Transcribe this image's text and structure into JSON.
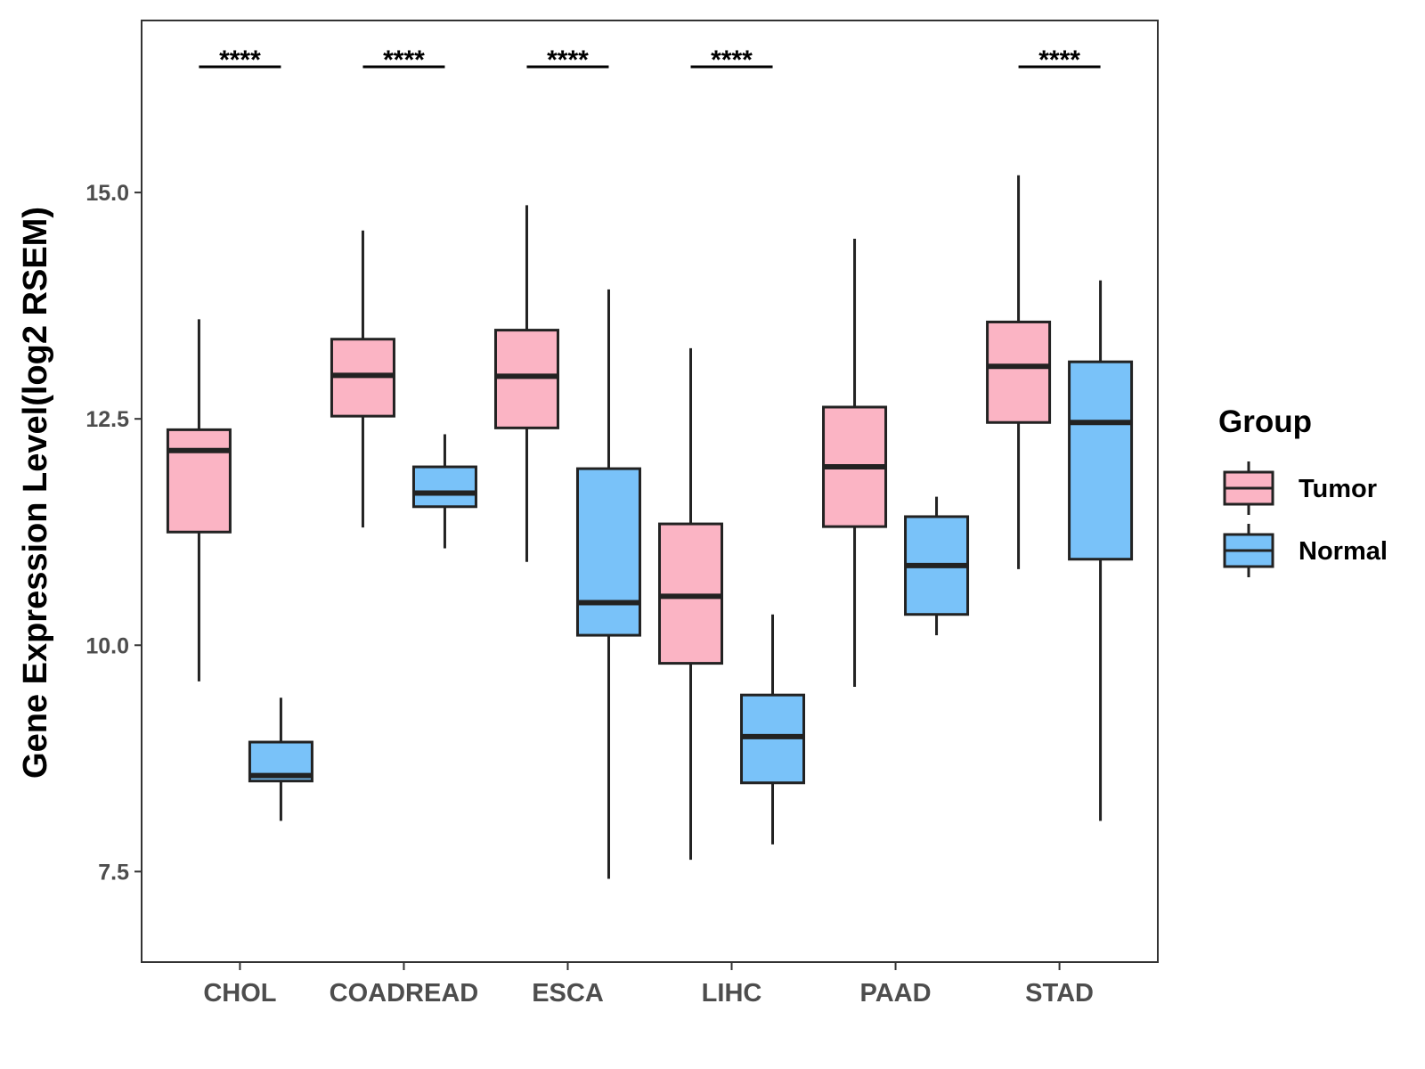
{
  "chart_data": {
    "type": "boxplot",
    "title": "",
    "xlabel": "",
    "ylabel": "Gene Expression Level(log2 RSEM)",
    "ylim": [
      6.5,
      16.9
    ],
    "yticks": [
      7.5,
      10.0,
      12.5,
      15.0
    ],
    "ytick_labels": [
      "7.5",
      "10.0",
      "12.5",
      "15.0"
    ],
    "grid": false,
    "legend": {
      "title": "Group",
      "position": "right",
      "entries": [
        {
          "name": "Tumor",
          "color": "#FBB4C4"
        },
        {
          "name": "Normal",
          "color": "#79C2F9"
        }
      ]
    },
    "categories": [
      "CHOL",
      "COADREAD",
      "ESCA",
      "LIHC",
      "PAAD",
      "STAD"
    ],
    "series": [
      {
        "name": "Tumor",
        "color": "#FBB4C4",
        "boxes": [
          {
            "min": 9.6,
            "q1": 11.25,
            "median": 12.15,
            "q3": 12.38,
            "max": 13.6
          },
          {
            "min": 11.3,
            "q1": 12.53,
            "median": 12.98,
            "q3": 13.38,
            "max": 14.58
          },
          {
            "min": 10.92,
            "q1": 12.4,
            "median": 12.97,
            "q3": 13.48,
            "max": 14.86
          },
          {
            "min": 7.63,
            "q1": 9.8,
            "median": 10.54,
            "q3": 11.34,
            "max": 13.28
          },
          {
            "min": 9.54,
            "q1": 11.31,
            "median": 11.97,
            "q3": 12.63,
            "max": 14.49
          },
          {
            "min": 10.84,
            "q1": 12.46,
            "median": 13.08,
            "q3": 13.57,
            "max": 15.19
          }
        ]
      },
      {
        "name": "Normal",
        "color": "#79C2F9",
        "boxes": [
          {
            "min": 8.06,
            "q1": 8.5,
            "median": 8.56,
            "q3": 8.93,
            "max": 9.42
          },
          {
            "min": 11.07,
            "q1": 11.53,
            "median": 11.68,
            "q3": 11.97,
            "max": 12.33
          },
          {
            "min": 7.42,
            "q1": 10.11,
            "median": 10.47,
            "q3": 11.95,
            "max": 13.93
          },
          {
            "min": 7.8,
            "q1": 8.48,
            "median": 8.99,
            "q3": 9.45,
            "max": 10.34
          },
          {
            "min": 10.11,
            "q1": 10.34,
            "median": 10.88,
            "q3": 11.42,
            "max": 11.64
          },
          {
            "min": 8.06,
            "q1": 10.95,
            "median": 12.46,
            "q3": 13.13,
            "max": 14.03
          }
        ]
      }
    ],
    "annotations": [
      {
        "category": "CHOL",
        "text": "****"
      },
      {
        "category": "COADREAD",
        "text": "****"
      },
      {
        "category": "ESCA",
        "text": "****"
      },
      {
        "category": "LIHC",
        "text": "****"
      },
      {
        "category": "PAAD",
        "text": ""
      },
      {
        "category": "STAD",
        "text": "****"
      }
    ]
  }
}
